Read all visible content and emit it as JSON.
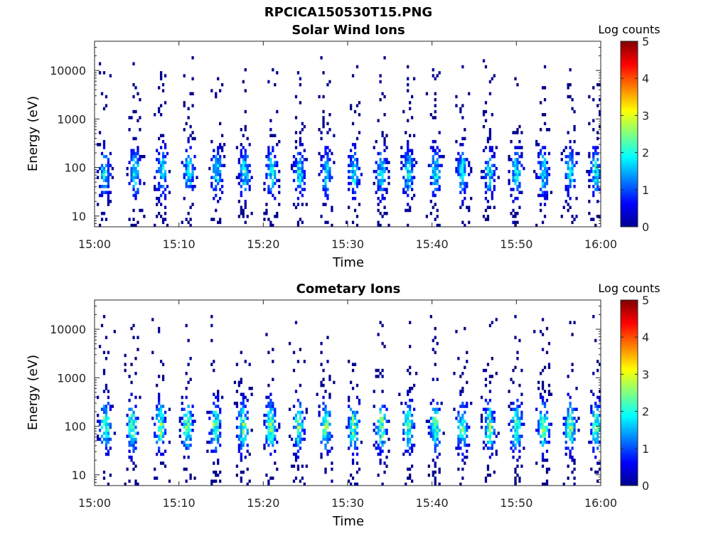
{
  "figure": {
    "title": "RPCICA150530T15.PNG"
  },
  "chart_data": [
    {
      "type": "heatmap",
      "title": "Solar Wind Ions",
      "xlabel": "Time",
      "ylabel": "Energy (eV)",
      "x_ticks": [
        "15:00",
        "15:10",
        "15:20",
        "15:30",
        "15:40",
        "15:50",
        "16:00"
      ],
      "x_range": [
        "15:00",
        "16:00"
      ],
      "y_scale": "log",
      "y_ticks": [
        10,
        100,
        1000,
        10000
      ],
      "y_tick_labels": [
        "10",
        "100",
        "1000",
        "10000"
      ],
      "y_range": [
        6,
        40000
      ],
      "colorbar": {
        "label": "Log counts",
        "range": [
          0,
          5
        ],
        "ticks": [
          "0",
          "1",
          "2",
          "3",
          "4",
          "5"
        ],
        "colormap": "jet"
      },
      "bursts_minutes": [
        1.2,
        4.8,
        8.0,
        11.2,
        14.5,
        17.8,
        21.0,
        24.3,
        27.5,
        30.8,
        34.0,
        37.2,
        40.4,
        43.6,
        46.8,
        50.0,
        53.2,
        56.4,
        59.4
      ],
      "burst_peak_energy_ev": 80,
      "burst_peak_log_counts": 2.0,
      "max_energy_ev": 20000
    },
    {
      "type": "heatmap",
      "title": "Cometary Ions",
      "xlabel": "Time",
      "ylabel": "Energy (eV)",
      "x_ticks": [
        "15:00",
        "15:10",
        "15:20",
        "15:30",
        "15:40",
        "15:50",
        "16:00"
      ],
      "x_range": [
        "15:00",
        "16:00"
      ],
      "y_scale": "log",
      "y_ticks": [
        10,
        100,
        1000,
        10000
      ],
      "y_tick_labels": [
        "10",
        "100",
        "1000",
        "10000"
      ],
      "y_range": [
        6,
        40000
      ],
      "colorbar": {
        "label": "Log counts",
        "range": [
          0,
          5
        ],
        "ticks": [
          "0",
          "1",
          "2",
          "3",
          "4",
          "5"
        ],
        "colormap": "jet"
      },
      "bursts_minutes": [
        1.3,
        4.5,
        7.8,
        11.0,
        14.3,
        17.6,
        20.9,
        24.2,
        27.4,
        30.7,
        34.0,
        37.2,
        40.4,
        43.6,
        46.8,
        50.0,
        53.2,
        56.4,
        59.5
      ],
      "burst_peak_energy_ev": 100,
      "burst_peak_log_counts": 2.6,
      "max_energy_ev": 20000
    }
  ]
}
